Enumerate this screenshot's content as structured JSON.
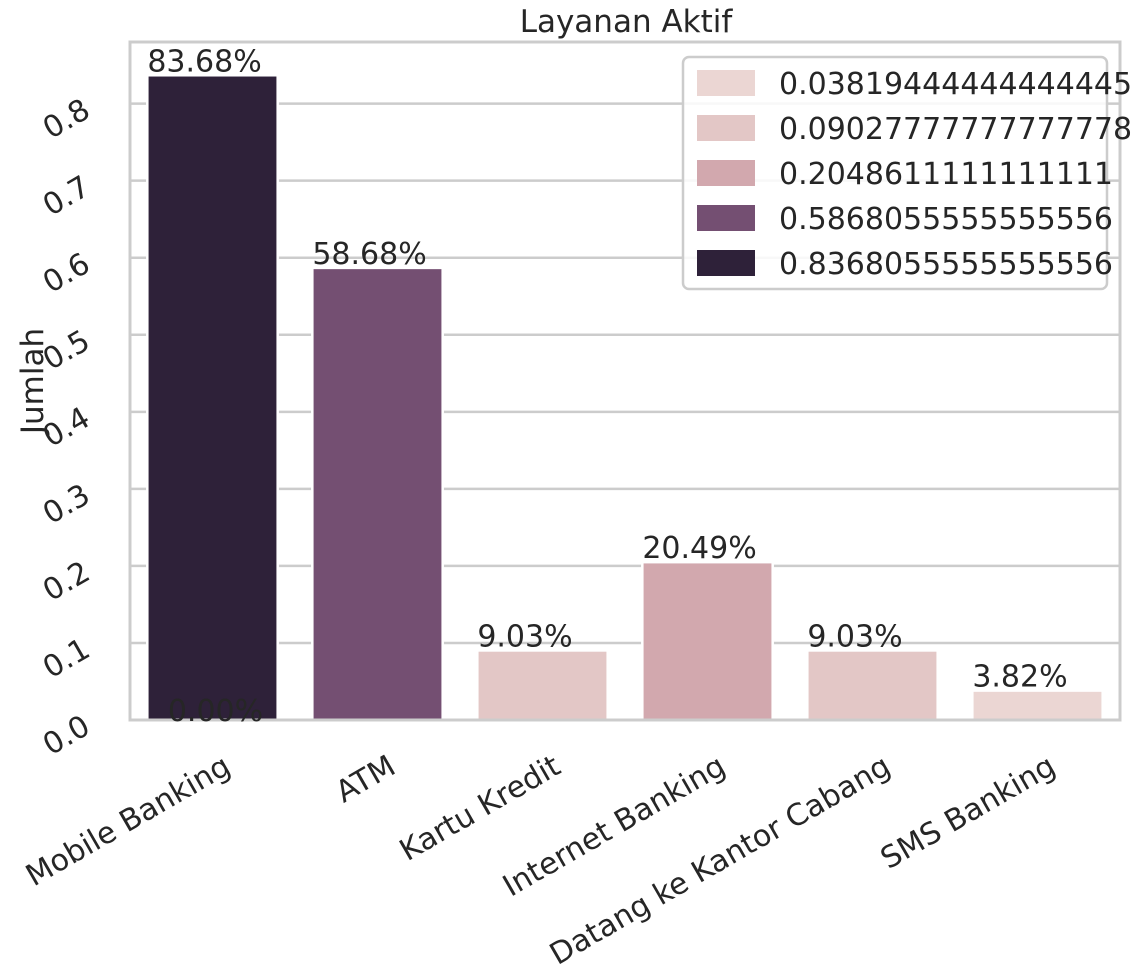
{
  "chart_data": {
    "type": "bar",
    "title": "Layanan Aktif",
    "xlabel": "",
    "ylabel": "Jumlah",
    "categories": [
      "Mobile Banking",
      "ATM",
      "Kartu Kredit",
      "Internet Banking",
      "Datang ke Kantor Cabang",
      "SMS Banking"
    ],
    "values": [
      0.8368055555555556,
      0.5868055555555556,
      0.09027777777777778,
      0.2048611111111111,
      0.09027777777777778,
      0.03819444444444445
    ],
    "colors": [
      "#2e2139",
      "#744f72",
      "#e3c7c6",
      "#d2a8ae",
      "#e3c7c6",
      "#ebd6d3"
    ],
    "bar_labels": [
      "83.68%",
      "58.68%",
      "9.03%",
      "20.49%",
      "9.03%",
      "3.82%"
    ],
    "extra_label": "0.00%",
    "ylim": [
      0,
      0.88
    ],
    "yticks": [
      0.0,
      0.1,
      0.2,
      0.3,
      0.4,
      0.5,
      0.6,
      0.7,
      0.8
    ],
    "ytick_labels": [
      "0.0",
      "0.1",
      "0.2",
      "0.3",
      "0.4",
      "0.5",
      "0.6",
      "0.7",
      "0.8"
    ],
    "grid": true,
    "legend": {
      "placement": "top-right",
      "entries": [
        {
          "label": "0.03819444444444445",
          "color": "#ebd6d3"
        },
        {
          "label": "0.09027777777777778",
          "color": "#e3c7c6"
        },
        {
          "label": "0.2048611111111111",
          "color": "#d2a8ae"
        },
        {
          "label": "0.5868055555555556",
          "color": "#744f72"
        },
        {
          "label": "0.8368055555555556",
          "color": "#2e2139"
        }
      ]
    },
    "style": {
      "grid_color": "#cccccc",
      "axis_color": "#cccccc",
      "text_color": "#262626"
    }
  }
}
